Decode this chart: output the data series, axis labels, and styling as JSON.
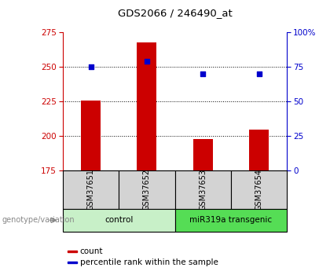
{
  "title": "GDS2066 / 246490_at",
  "samples": [
    "GSM37651",
    "GSM37652",
    "GSM37653",
    "GSM37654"
  ],
  "bar_values": [
    226,
    268,
    198,
    205
  ],
  "bar_bottom": 175,
  "percentile_values": [
    75,
    79,
    70,
    70
  ],
  "bar_color": "#cc0000",
  "dot_color": "#0000cc",
  "ylim_left": [
    175,
    275
  ],
  "ylim_right": [
    0,
    100
  ],
  "yticks_left": [
    175,
    200,
    225,
    250,
    275
  ],
  "yticks_right": [
    0,
    25,
    50,
    75,
    100
  ],
  "ytick_right_labels": [
    "0",
    "25",
    "50",
    "75",
    "100%"
  ],
  "groups": [
    {
      "label": "control",
      "indices": [
        0,
        1
      ],
      "color": "#c8f0c8"
    },
    {
      "label": "miR319a transgenic",
      "indices": [
        2,
        3
      ],
      "color": "#55dd55"
    }
  ],
  "genotype_label": "genotype/variation",
  "legend_items": [
    {
      "label": "count",
      "color": "#cc0000"
    },
    {
      "label": "percentile rank within the sample",
      "color": "#0000cc"
    }
  ],
  "grid_yticks": [
    200,
    225,
    250
  ],
  "tick_area_bg": "#d3d3d3",
  "bar_width": 0.35
}
